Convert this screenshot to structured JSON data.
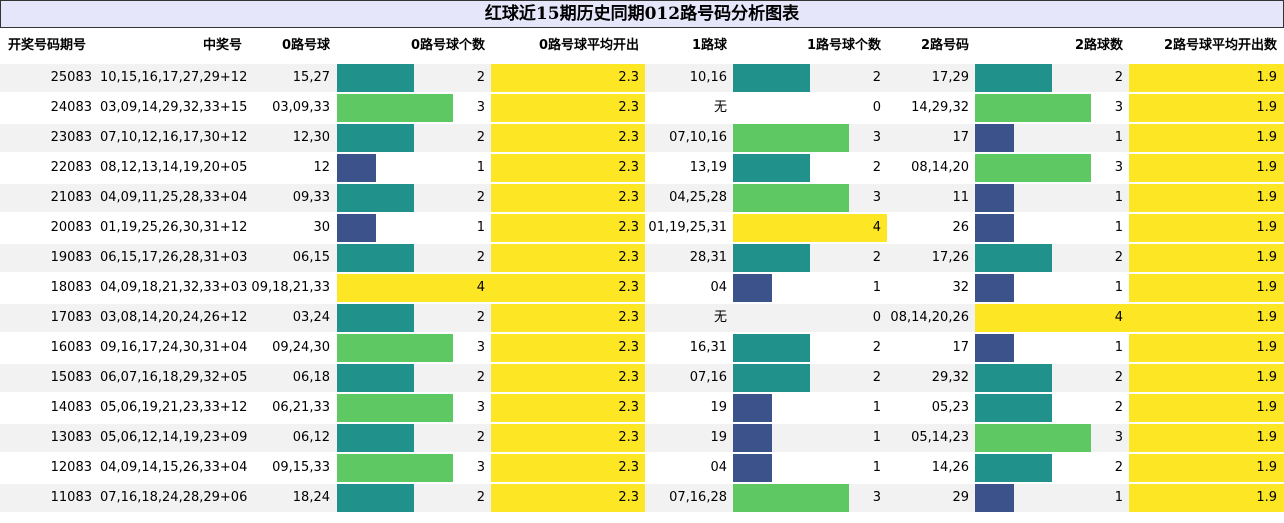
{
  "title": "红球近15期历史同期012路号码分析图表",
  "headers": {
    "period": "开奖号码期号",
    "winning": "中奖号",
    "r0": "0路号球",
    "r0count": "0路号球个数",
    "r0avg": "0路号球平均开出",
    "r1": "1路球",
    "r1count": "1路号球个数",
    "r2": "2路号码",
    "r2count": "2路球数",
    "r2avg": "2路号球平均开出数"
  },
  "colors": {
    "count1": "#3b528b",
    "count2": "#21918c",
    "count3": "#5ec962",
    "count4": "#fde725",
    "row_alt": "#f2f2f2",
    "row_base": "#ffffff",
    "title_bg": "#e6e6fa"
  },
  "chart_data": {
    "type": "table",
    "title": "红球近15期历史同期012路号码分析图表",
    "columns": [
      "开奖号码期号",
      "中奖号",
      "0路号球",
      "0路号球个数",
      "0路号球平均开出",
      "1路球",
      "1路号球个数",
      "2路号码",
      "2路球数",
      "2路号球平均开出数"
    ],
    "bar_scale_max": 4,
    "rows": [
      {
        "period": "25083",
        "winning": "10,15,16,17,27,29+12",
        "r0": "15,27",
        "r0count": 2,
        "r0avg": "2.3",
        "r1": "10,16",
        "r1count": 2,
        "r2": "17,29",
        "r2count": 2,
        "r2avg": "1.9"
      },
      {
        "period": "24083",
        "winning": "03,09,14,29,32,33+15",
        "r0": "03,09,33",
        "r0count": 3,
        "r0avg": "2.3",
        "r1": "无",
        "r1count": 0,
        "r2": "14,29,32",
        "r2count": 3,
        "r2avg": "1.9"
      },
      {
        "period": "23083",
        "winning": "07,10,12,16,17,30+12",
        "r0": "12,30",
        "r0count": 2,
        "r0avg": "2.3",
        "r1": "07,10,16",
        "r1count": 3,
        "r2": "17",
        "r2count": 1,
        "r2avg": "1.9"
      },
      {
        "period": "22083",
        "winning": "08,12,13,14,19,20+05",
        "r0": "12",
        "r0count": 1,
        "r0avg": "2.3",
        "r1": "13,19",
        "r1count": 2,
        "r2": "08,14,20",
        "r2count": 3,
        "r2avg": "1.9"
      },
      {
        "period": "21083",
        "winning": "04,09,11,25,28,33+04",
        "r0": "09,33",
        "r0count": 2,
        "r0avg": "2.3",
        "r1": "04,25,28",
        "r1count": 3,
        "r2": "11",
        "r2count": 1,
        "r2avg": "1.9"
      },
      {
        "period": "20083",
        "winning": "01,19,25,26,30,31+12",
        "r0": "30",
        "r0count": 1,
        "r0avg": "2.3",
        "r1": "01,19,25,31",
        "r1count": 4,
        "r2": "26",
        "r2count": 1,
        "r2avg": "1.9"
      },
      {
        "period": "19083",
        "winning": "06,15,17,26,28,31+03",
        "r0": "06,15",
        "r0count": 2,
        "r0avg": "2.3",
        "r1": "28,31",
        "r1count": 2,
        "r2": "17,26",
        "r2count": 2,
        "r2avg": "1.9"
      },
      {
        "period": "18083",
        "winning": "04,09,18,21,32,33+03",
        "r0": "09,18,21,33",
        "r0count": 4,
        "r0avg": "2.3",
        "r1": "04",
        "r1count": 1,
        "r2": "32",
        "r2count": 1,
        "r2avg": "1.9"
      },
      {
        "period": "17083",
        "winning": "03,08,14,20,24,26+12",
        "r0": "03,24",
        "r0count": 2,
        "r0avg": "2.3",
        "r1": "无",
        "r1count": 0,
        "r2": "08,14,20,26",
        "r2count": 4,
        "r2avg": "1.9"
      },
      {
        "period": "16083",
        "winning": "09,16,17,24,30,31+04",
        "r0": "09,24,30",
        "r0count": 3,
        "r0avg": "2.3",
        "r1": "16,31",
        "r1count": 2,
        "r2": "17",
        "r2count": 1,
        "r2avg": "1.9"
      },
      {
        "period": "15083",
        "winning": "06,07,16,18,29,32+05",
        "r0": "06,18",
        "r0count": 2,
        "r0avg": "2.3",
        "r1": "07,16",
        "r1count": 2,
        "r2": "29,32",
        "r2count": 2,
        "r2avg": "1.9"
      },
      {
        "period": "14083",
        "winning": "05,06,19,21,23,33+12",
        "r0": "06,21,33",
        "r0count": 3,
        "r0avg": "2.3",
        "r1": "19",
        "r1count": 1,
        "r2": "05,23",
        "r2count": 2,
        "r2avg": "1.9"
      },
      {
        "period": "13083",
        "winning": "05,06,12,14,19,23+09",
        "r0": "06,12",
        "r0count": 2,
        "r0avg": "2.3",
        "r1": "19",
        "r1count": 1,
        "r2": "05,14,23",
        "r2count": 3,
        "r2avg": "1.9"
      },
      {
        "period": "12083",
        "winning": "04,09,14,15,26,33+04",
        "r0": "09,15,33",
        "r0count": 3,
        "r0avg": "2.3",
        "r1": "04",
        "r1count": 1,
        "r2": "14,26",
        "r2count": 2,
        "r2avg": "1.9"
      },
      {
        "period": "11083",
        "winning": "07,16,18,24,28,29+06",
        "r0": "18,24",
        "r0count": 2,
        "r0avg": "2.3",
        "r1": "07,16,28",
        "r1count": 3,
        "r2": "29",
        "r2count": 1,
        "r2avg": "1.9"
      }
    ]
  }
}
